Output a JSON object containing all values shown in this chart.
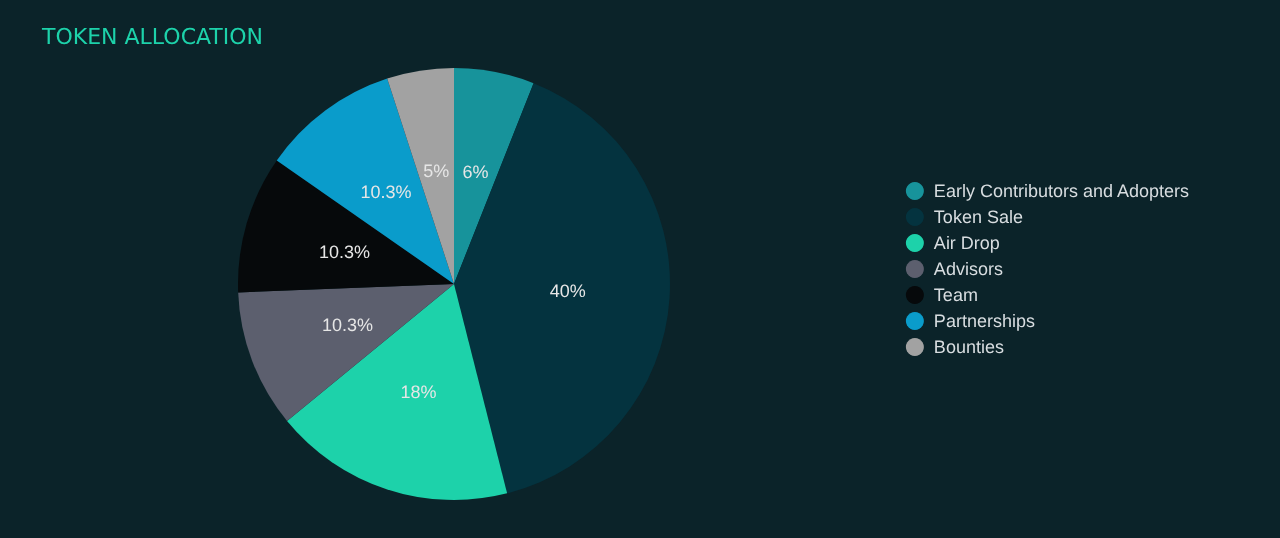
{
  "chart_data": {
    "type": "pie",
    "title": "TOKEN ALLOCATION",
    "categories": [
      "Early Contributors and Adopters",
      "Token Sale",
      "Air Drop",
      "Advisors",
      "Team",
      "Partnerships",
      "Bounties"
    ],
    "values": [
      6,
      40,
      18,
      10.3,
      10.3,
      10.3,
      5
    ],
    "value_labels": [
      "6%",
      "40%",
      "18%",
      "10.3%",
      "10.3%",
      "10.3%",
      "5%"
    ],
    "colors": [
      "#17939b",
      "#04333f",
      "#1dd2aa",
      "#5c5f6e",
      "#06090b",
      "#0a9ccb",
      "#a2a2a2"
    ],
    "legend": "right"
  }
}
